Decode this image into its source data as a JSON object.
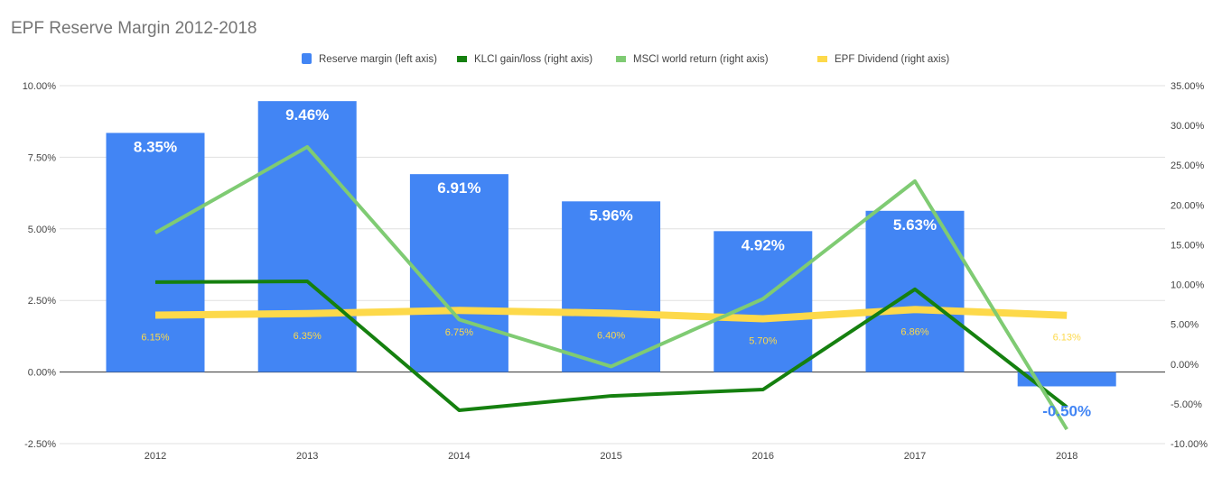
{
  "chart_data": {
    "type": "bar",
    "title": "EPF Reserve Margin 2012-2018",
    "categories": [
      "2012",
      "2013",
      "2014",
      "2015",
      "2016",
      "2017",
      "2018"
    ],
    "left_axis": {
      "ticks": [
        "10.00%",
        "7.50%",
        "5.00%",
        "2.50%",
        "0.00%",
        "-2.50%"
      ],
      "ylim": [
        -2.5,
        10
      ]
    },
    "right_axis": {
      "ticks": [
        "35.00%",
        "30.00%",
        "25.00%",
        "20.00%",
        "15.00%",
        "10.00%",
        "5.00%",
        "0.00%",
        "-5.00%",
        "-10.00%"
      ],
      "ylim": [
        -10,
        35
      ]
    },
    "legend_position": "top",
    "series": [
      {
        "name": "Reserve margin (left axis)",
        "type": "bar",
        "axis": "left",
        "color": "#4285f4",
        "values": [
          8.35,
          9.46,
          6.91,
          5.96,
          4.92,
          5.63,
          -0.5
        ],
        "labels": [
          "8.35%",
          "9.46%",
          "6.91%",
          "5.96%",
          "4.92%",
          "5.63%",
          "-0.50%"
        ]
      },
      {
        "name": "KLCI gain/loss (right axis)",
        "type": "line",
        "axis": "right",
        "color": "#15800f",
        "values": [
          10.3,
          10.4,
          -5.8,
          -4.0,
          -3.2,
          9.4,
          -5.4
        ]
      },
      {
        "name": "MSCI world return (right axis)",
        "type": "line",
        "axis": "right",
        "color": "#7fcb73",
        "values": [
          16.5,
          27.3,
          5.6,
          -0.3,
          8.2,
          23.0,
          -8.2
        ]
      },
      {
        "name": "EPF Dividend (right axis)",
        "type": "line",
        "axis": "right",
        "color": "#fdd94a",
        "values": [
          6.15,
          6.35,
          6.75,
          6.4,
          5.7,
          6.86,
          6.13
        ],
        "labels": [
          "6.15%",
          "6.35%",
          "6.75%",
          "6.40%",
          "5.70%",
          "6.86%",
          "6.13%"
        ]
      }
    ]
  }
}
